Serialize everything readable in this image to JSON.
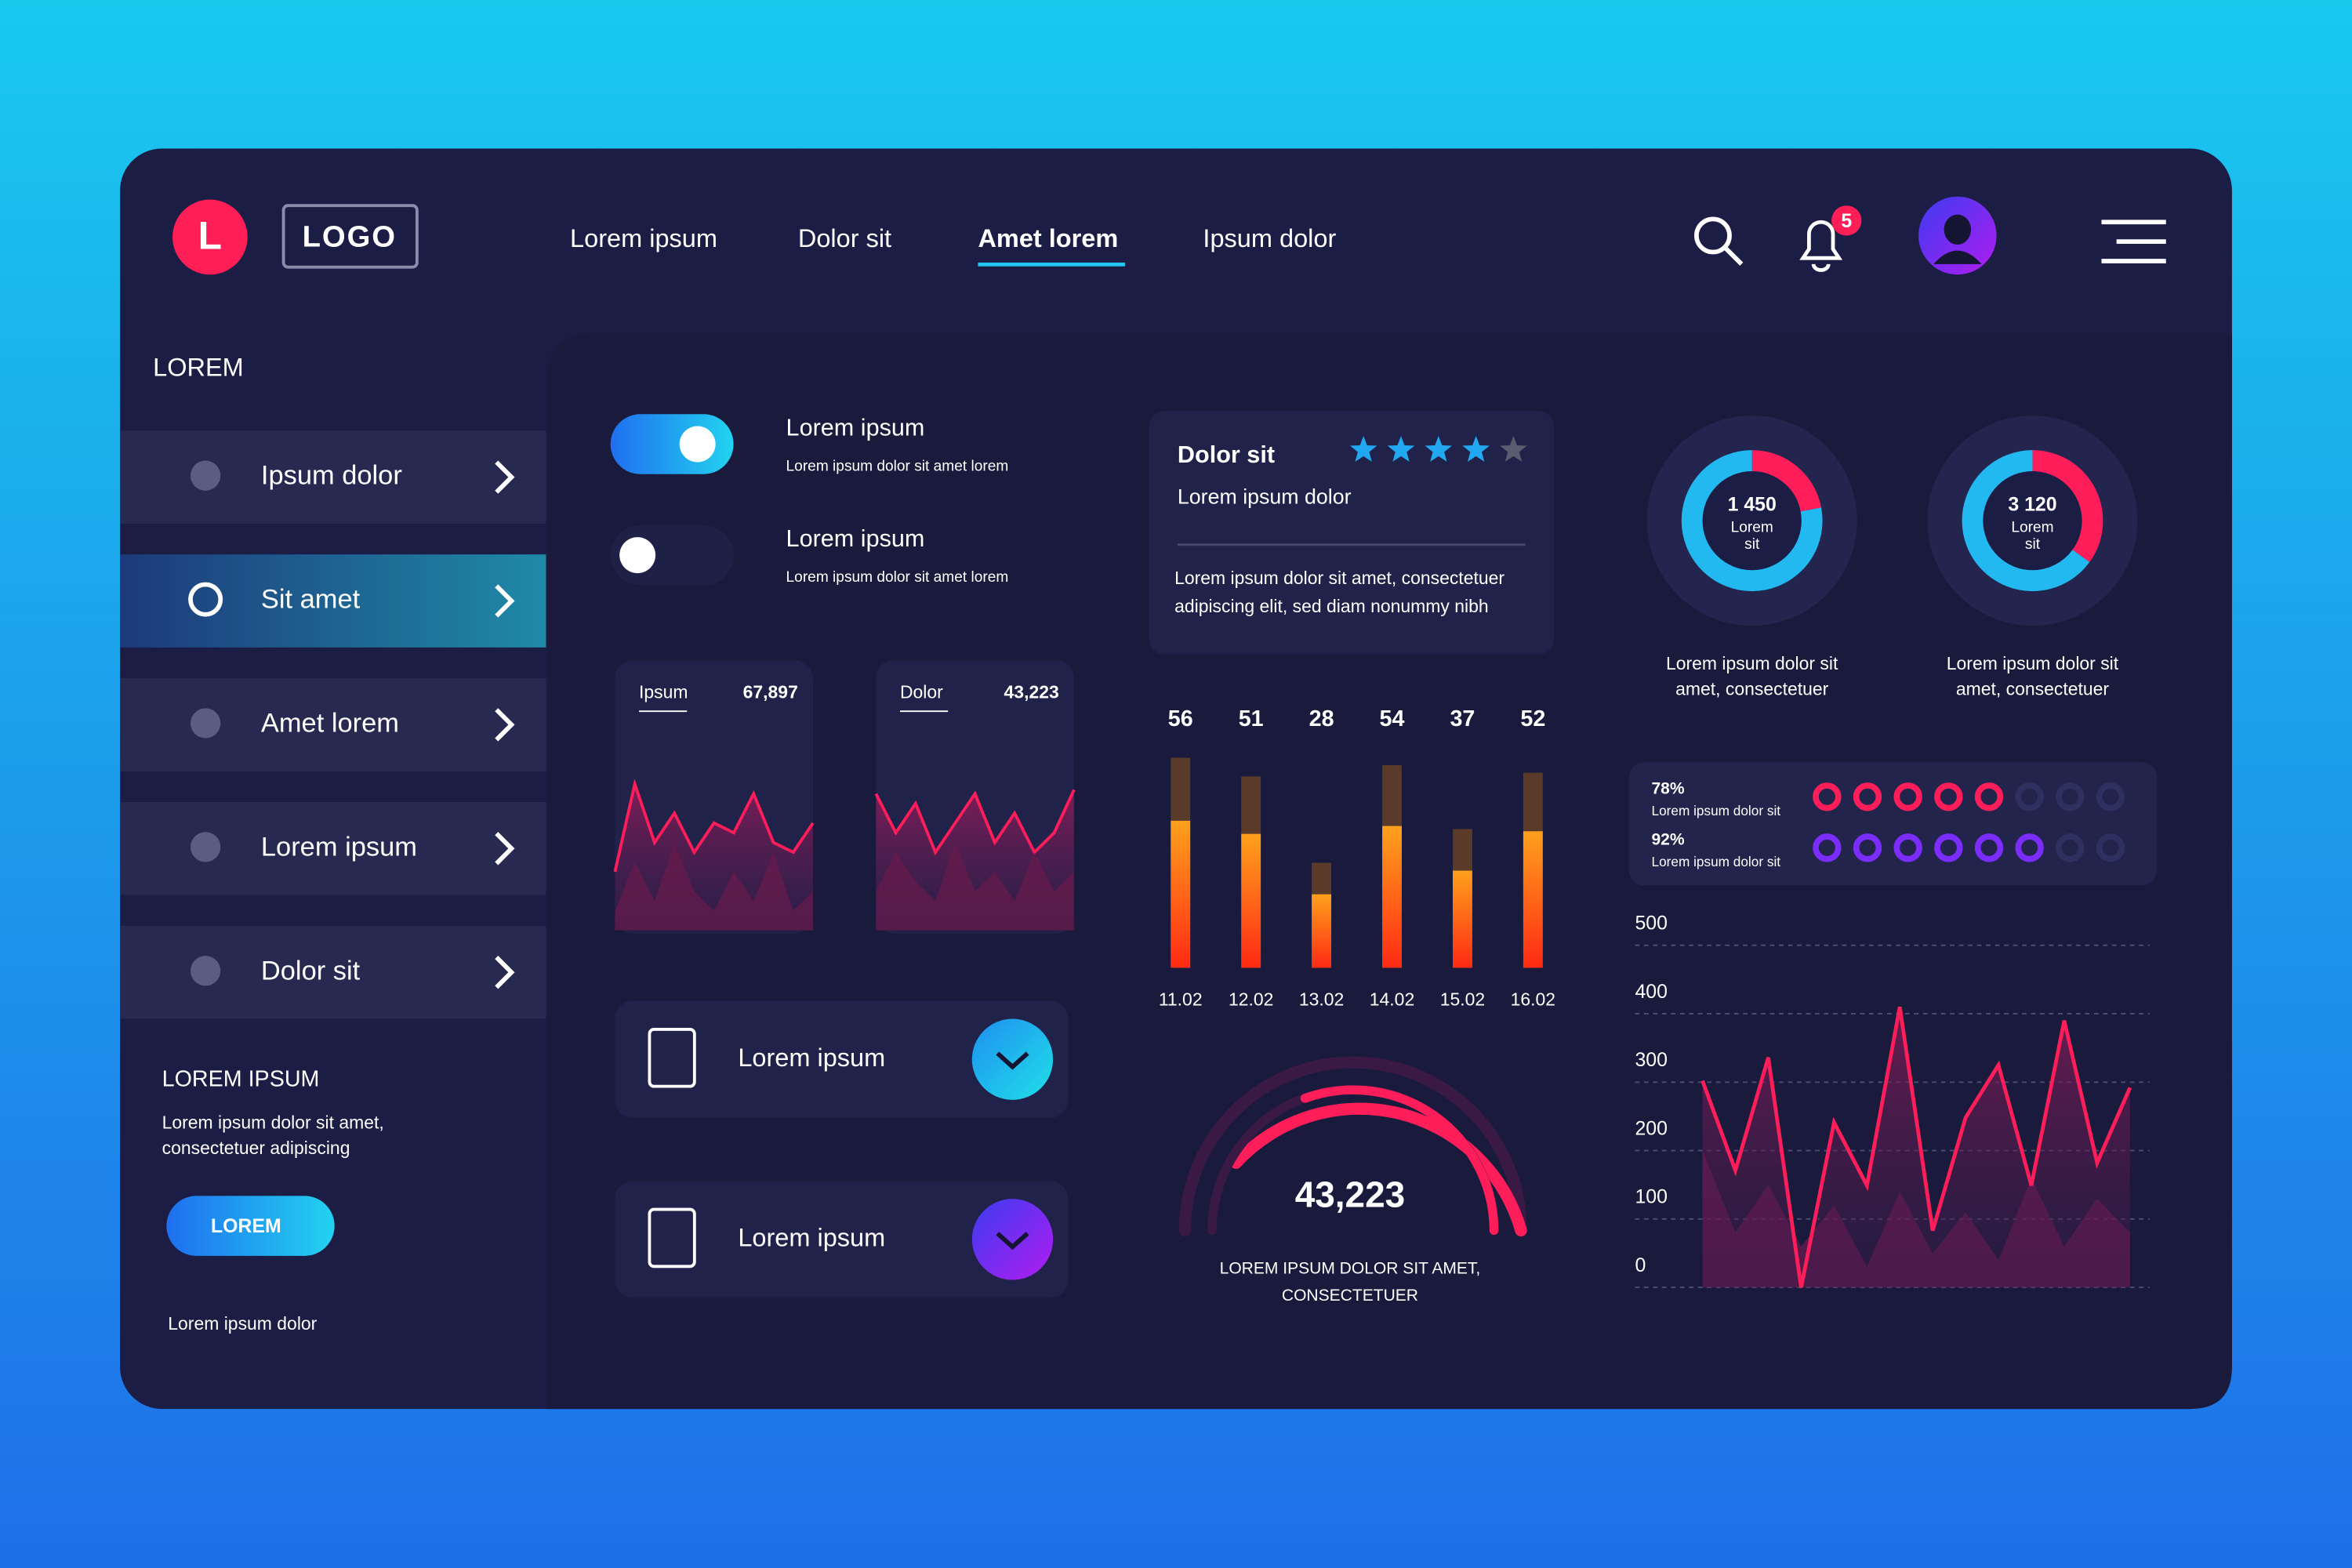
{
  "header": {
    "logo_letter": "L",
    "logo": "LOGO",
    "nav": [
      "Lorem ipsum",
      "Dolor sit",
      "Amet lorem",
      "Ipsum dolor"
    ],
    "notifications": 5
  },
  "sidebar": {
    "heading": "LOREM",
    "items": [
      "Ipsum dolor",
      "Sit amet",
      "Amet lorem",
      "Lorem ipsum",
      "Dolor sit"
    ],
    "footer_title": "LOREM IPSUM",
    "footer_text": [
      "Lorem ipsum dolor sit amet,",
      "consectetuer adipiscing"
    ],
    "button": "LOREM",
    "note": "Lorem ipsum dolor"
  },
  "toggles": [
    {
      "title": "Lorem ipsum",
      "text": "Lorem ipsum dolor sit amet lorem",
      "on": true
    },
    {
      "title": "Lorem ipsum",
      "text": "Lorem ipsum dolor sit amet lorem",
      "on": false
    }
  ],
  "mini_charts": [
    {
      "label": "Ipsum",
      "value": "67,897",
      "ylim": [
        0,
        100
      ],
      "values": [
        30,
        75,
        45,
        60,
        40,
        55,
        50,
        70,
        45,
        40,
        55
      ],
      "shadow": [
        10,
        35,
        15,
        45,
        20,
        10,
        30,
        15,
        40,
        10,
        20
      ]
    },
    {
      "label": "Dolor",
      "value": "43,223",
      "ylim": [
        0,
        100
      ],
      "values": [
        70,
        50,
        65,
        40,
        55,
        70,
        45,
        60,
        40,
        50,
        72
      ],
      "shadow": [
        20,
        40,
        25,
        15,
        45,
        20,
        30,
        15,
        40,
        20,
        30
      ]
    }
  ],
  "list_cards": [
    "Lorem ipsum",
    "Lorem ipsum"
  ],
  "rating_card": {
    "title": "Dolor sit",
    "rating": 4,
    "rating_max": 5,
    "subtitle": "Lorem ipsum dolor",
    "text": [
      "Lorem ipsum dolor sit amet, consectetuer",
      "adipiscing elit, sed diam nonummy nibh"
    ]
  },
  "chart_data": {
    "type": "bar",
    "categories": [
      "11.02",
      "12.02",
      "13.02",
      "14.02",
      "15.02",
      "16.02"
    ],
    "values": [
      56,
      51,
      28,
      54,
      37,
      52
    ],
    "ylim": [
      0,
      58
    ]
  },
  "gauge": {
    "value": "43,223",
    "caption": [
      "LOREM IPSUM DOLOR SIT AMET,",
      "CONSECTETUER"
    ]
  },
  "donuts": [
    {
      "value": "1 450",
      "label": [
        "Lorem",
        "sit"
      ],
      "segments": [
        22,
        78
      ],
      "caption": [
        "Lorem ipsum dolor sit",
        "amet, consectetuer"
      ]
    },
    {
      "value": "3 120",
      "label": [
        "Lorem",
        "sit"
      ],
      "segments": [
        35,
        65
      ],
      "caption": [
        "Lorem ipsum dolor sit",
        "amet, consectetuer"
      ]
    }
  ],
  "progress": [
    {
      "percent": "78%",
      "text": "Lorem ipsum dolor sit",
      "filled": 5,
      "total": 8,
      "color": "#ff1e5a"
    },
    {
      "percent": "92%",
      "text": "Lorem ipsum dolor sit",
      "filled": 6,
      "total": 8,
      "color": "#7b2cff"
    }
  ],
  "line_chart": {
    "type": "line",
    "ylim": [
      0,
      500
    ],
    "yticks": [
      0,
      100,
      200,
      300,
      400,
      500
    ],
    "series": [
      {
        "color": "#ff1e5a",
        "values": [
          302,
          171,
          336,
          0,
          241,
          149,
          410,
          83,
          248,
          325,
          149,
          390,
          182,
          292
        ]
      },
      {
        "color": "#7a1c55",
        "values": [
          200,
          80,
          150,
          60,
          120,
          30,
          140,
          50,
          110,
          40,
          160,
          60,
          130,
          80
        ]
      }
    ]
  }
}
